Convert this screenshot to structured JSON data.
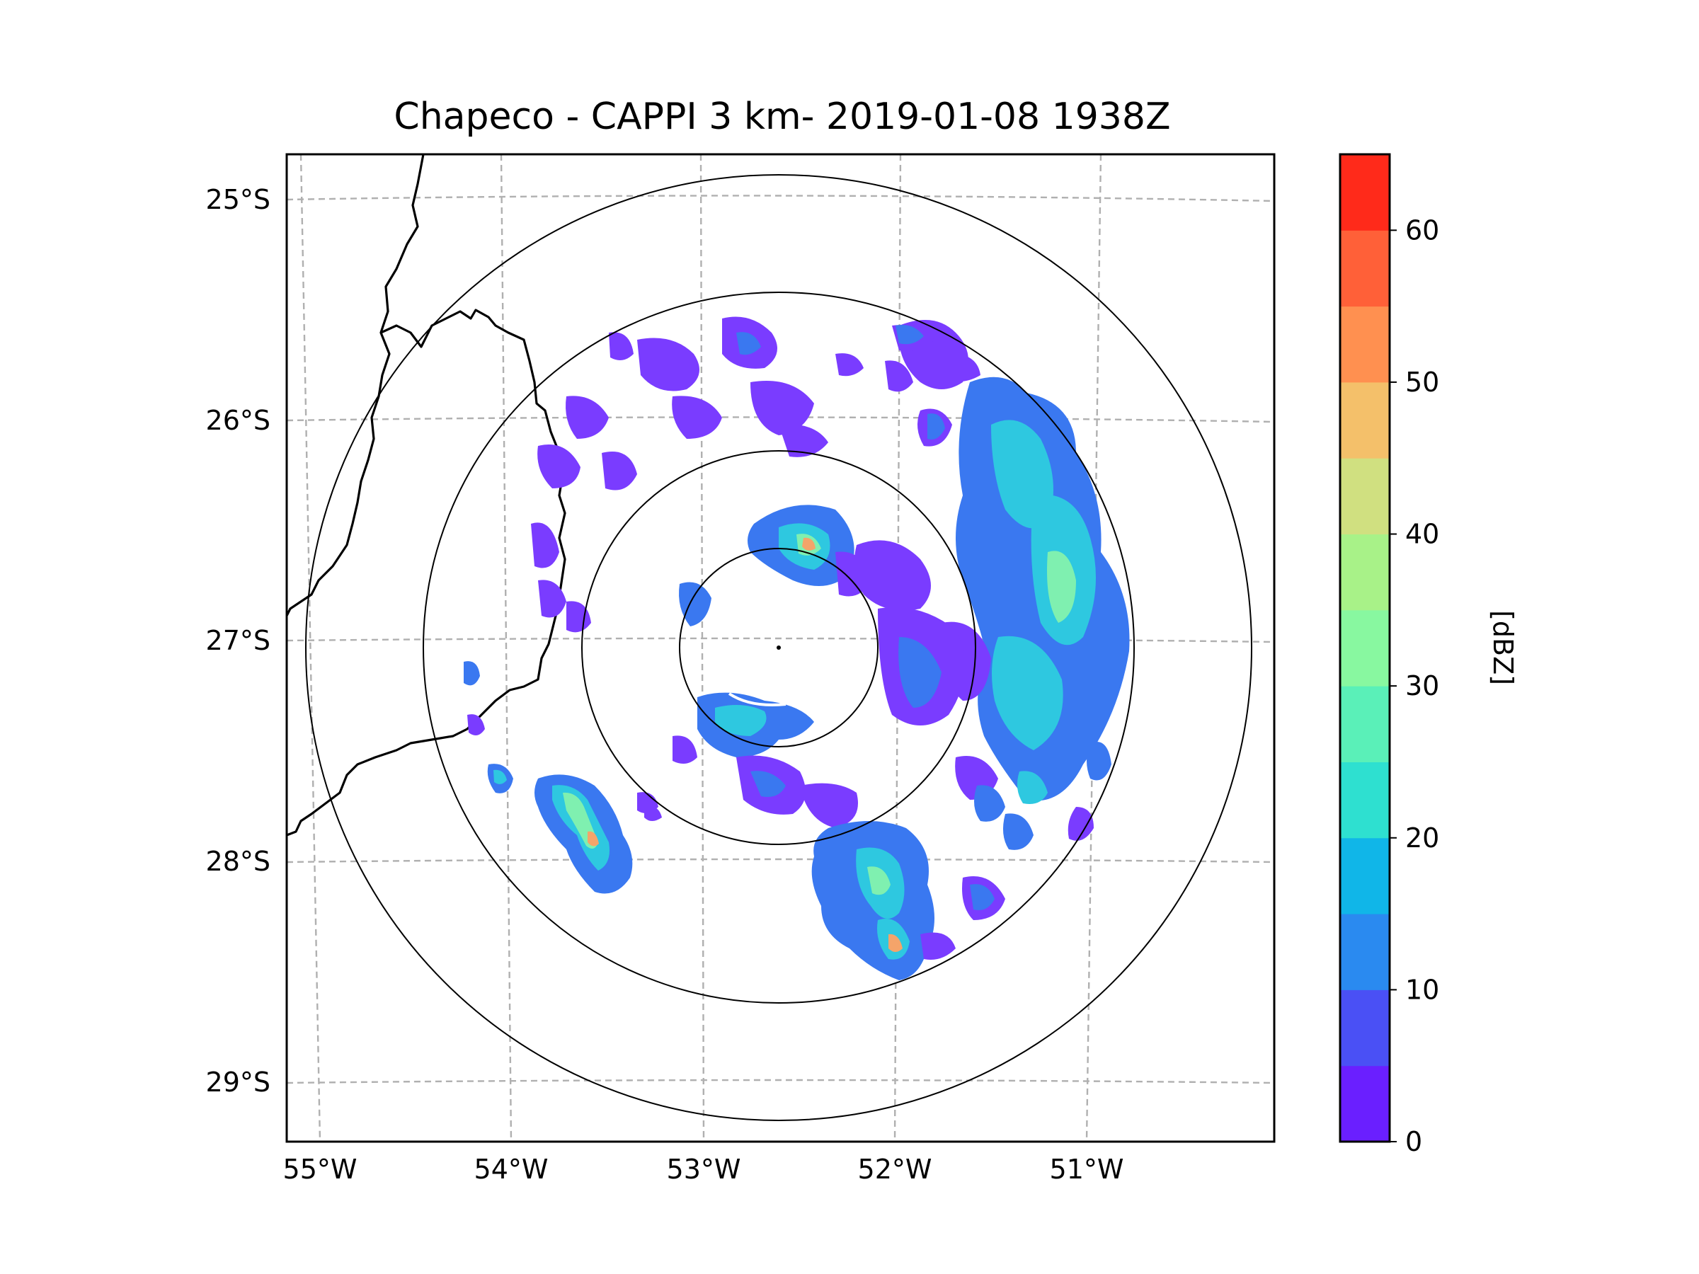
{
  "title": "Chapeco - CAPPI 3 km- 2019-01-08 1938Z",
  "axes": {
    "lat_labels": [
      "25°S",
      "26°S",
      "27°S",
      "28°S",
      "29°S"
    ],
    "lon_labels": [
      "55°W",
      "54°W",
      "53°W",
      "52°W",
      "51°W"
    ]
  },
  "colorbar": {
    "label": "[dBZ]",
    "tick_labels": [
      "0",
      "10",
      "20",
      "30",
      "40",
      "50",
      "60"
    ],
    "range": [
      0,
      65
    ],
    "step": 5,
    "colors": [
      "#6a1fff",
      "#4a50f5",
      "#2a8af0",
      "#10b6e8",
      "#2ee0d0",
      "#5af0b8",
      "#88f8a0",
      "#a8f288",
      "#d0e080",
      "#f4c06a",
      "#ff9050",
      "#ff6038",
      "#ff2a1a"
    ]
  },
  "radar": {
    "site": "Chapeco",
    "product": "CAPPI 3 km",
    "range_rings": 4
  },
  "echo_colors": {
    "weak": "#7a3cff",
    "light": "#3a78f0",
    "moderate": "#2ec8e0",
    "strong": "#7ff0b0",
    "core": "#f4a46a"
  }
}
